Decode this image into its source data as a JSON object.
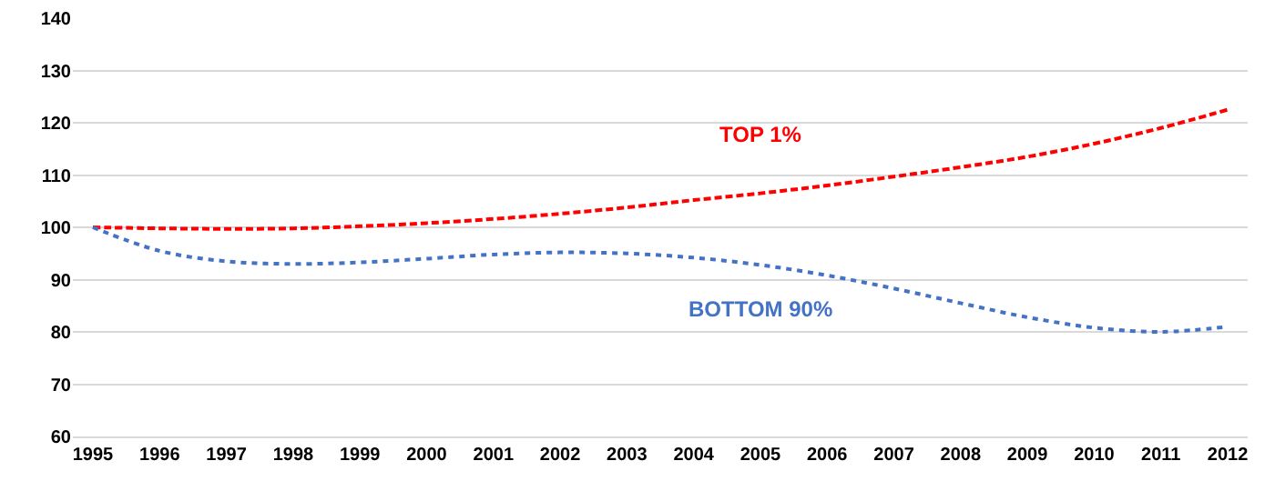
{
  "chart_data": {
    "type": "line",
    "categories": [
      "1995",
      "1996",
      "1997",
      "1998",
      "1999",
      "2000",
      "2001",
      "2002",
      "2003",
      "2004",
      "2005",
      "2006",
      "2007",
      "2008",
      "2009",
      "2010",
      "2011",
      "2012"
    ],
    "series": [
      {
        "name": "TOP 1%",
        "color": "#ff0000",
        "line_style": "dashed",
        "values": [
          100,
          99.8,
          99.7,
          99.8,
          100.2,
          100.8,
          101.6,
          102.6,
          103.8,
          105.2,
          106.5,
          108,
          109.7,
          111.5,
          113.5,
          116,
          119,
          122.5
        ]
      },
      {
        "name": "BOTTOM 90%",
        "color": "#4472c4",
        "line_style": "dotted",
        "values": [
          100,
          95.5,
          93.5,
          93,
          93.3,
          94,
          94.8,
          95.2,
          95,
          94.2,
          92.8,
          90.8,
          88.3,
          85.5,
          82.8,
          80.8,
          80,
          81
        ]
      }
    ],
    "ylim": [
      60,
      140
    ],
    "yticks": [
      60,
      70,
      80,
      90,
      100,
      110,
      120,
      130,
      140
    ],
    "grid": "y",
    "legend": false,
    "marker": "none"
  }
}
